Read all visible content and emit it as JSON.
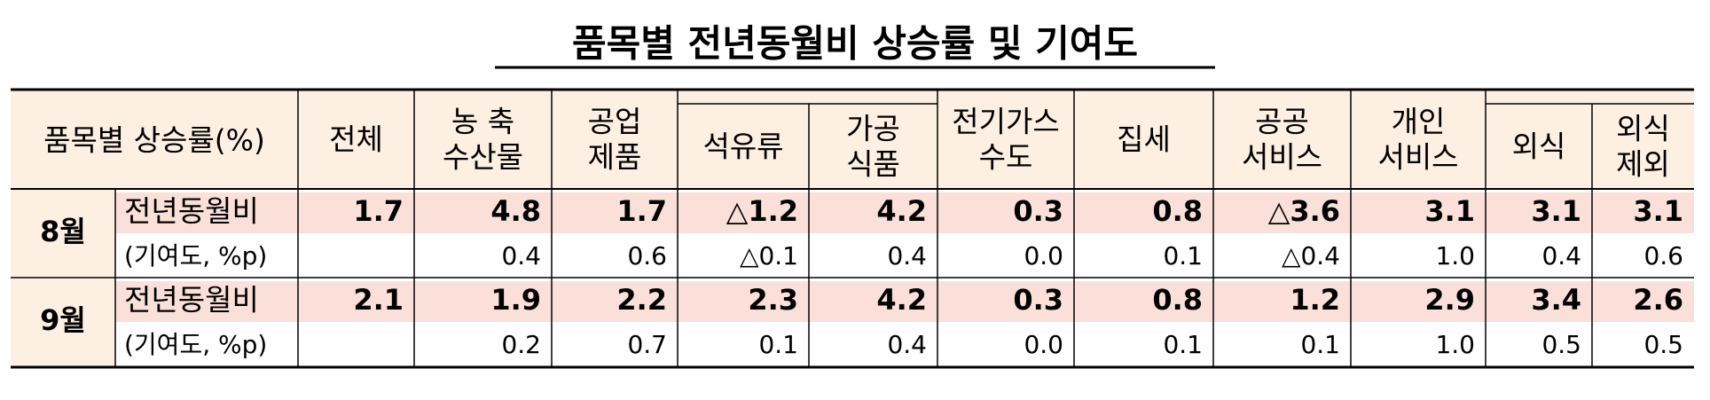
{
  "title": "품목별 전년동월비 상승률 및 기여도",
  "table": {
    "header": {
      "row_label": "품목별 상승률(%)",
      "columns": [
        [
          "전체"
        ],
        [
          "농 축",
          "수산물"
        ],
        [
          "공업",
          "제품"
        ],
        [
          "석유류"
        ],
        [
          "가공",
          "식품"
        ],
        [
          "전기가스",
          "수도"
        ],
        [
          "집세"
        ],
        [
          "공공",
          "서비스"
        ],
        [
          "개인",
          "서비스"
        ],
        [
          "외식"
        ],
        [
          "외식",
          "제외"
        ]
      ]
    },
    "rows": [
      {
        "month": "8월",
        "lines": [
          {
            "label": "전년동월비",
            "values": [
              "1.7",
              "4.8",
              "1.7",
              "△1.2",
              "4.2",
              "0.3",
              "0.8",
              "△3.6",
              "3.1",
              "3.1",
              "3.1"
            ]
          },
          {
            "label": "(기여도, %p)",
            "values": [
              null,
              "0.4",
              "0.6",
              "△0.1",
              "0.4",
              "0.0",
              "0.1",
              "△0.4",
              "1.0",
              "0.4",
              "0.6"
            ]
          }
        ]
      },
      {
        "month": "9월",
        "lines": [
          {
            "label": "전년동월비",
            "values": [
              "2.1",
              "1.9",
              "2.2",
              "2.3",
              "4.2",
              "0.3",
              "0.8",
              "1.2",
              "2.9",
              "3.4",
              "2.6"
            ]
          },
          {
            "label": "(기여도, %p)",
            "values": [
              null,
              "0.2",
              "0.7",
              "0.1",
              "0.4",
              "0.0",
              "0.1",
              "0.1",
              "1.0",
              "0.5",
              "0.5"
            ]
          }
        ]
      }
    ]
  }
}
